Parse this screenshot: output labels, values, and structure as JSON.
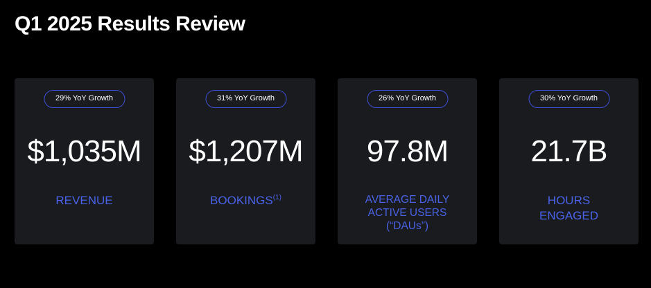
{
  "title": "Q1 2025 Results Review",
  "colors": {
    "background": "#000000",
    "card": "#1a1b1f",
    "accent": "#4a63e8",
    "badge_border": "#3d4fd6"
  },
  "cards": [
    {
      "badge": "29% YoY Growth",
      "value": "$1,035M",
      "label_lines": [
        "REVENUE"
      ],
      "footnote": ""
    },
    {
      "badge": "31% YoY Growth",
      "value": "$1,207M",
      "label_lines": [
        "BOOKINGS"
      ],
      "footnote": "(1)"
    },
    {
      "badge": "26% YoY Growth",
      "value": "97.8M",
      "label_lines": [
        "AVERAGE DAILY",
        "ACTIVE USERS",
        "(“DAUs”)"
      ],
      "footnote": ""
    },
    {
      "badge": "30% YoY Growth",
      "value": "21.7B",
      "label_lines": [
        "HOURS",
        "ENGAGED"
      ],
      "footnote": ""
    }
  ]
}
